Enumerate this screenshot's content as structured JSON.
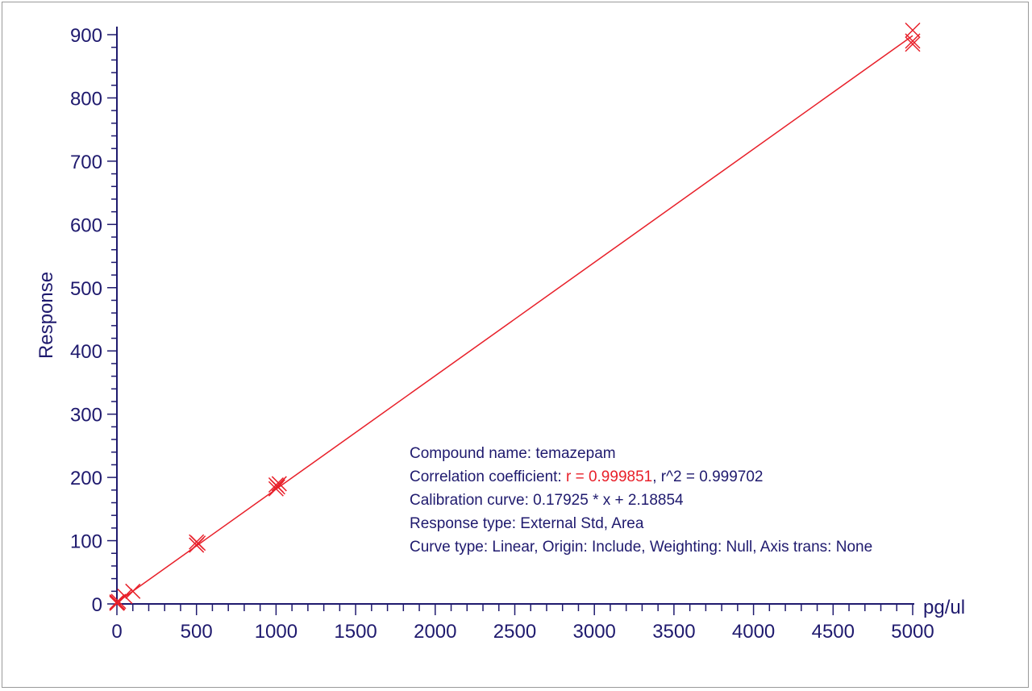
{
  "chart_data": {
    "type": "scatter",
    "title": "",
    "xlabel": "pg/ul",
    "ylabel": "Response",
    "xlim": [
      0,
      5000
    ],
    "ylim": [
      0,
      900
    ],
    "x_ticks": [
      "0",
      "500",
      "1000",
      "1500",
      "2000",
      "2500",
      "3000",
      "3500",
      "4000",
      "4500",
      "5000"
    ],
    "y_ticks": [
      "0",
      "100",
      "200",
      "300",
      "400",
      "500",
      "600",
      "700",
      "800",
      "900"
    ],
    "grid": false,
    "colors": {
      "axis": "#1f1a6e",
      "series": "#e8202a"
    },
    "series": [
      {
        "marker": "x",
        "points": [
          [
            0,
            1
          ],
          [
            0,
            3
          ],
          [
            5,
            2
          ],
          [
            10,
            4
          ],
          [
            50,
            12
          ],
          [
            100,
            20
          ],
          [
            500,
            93
          ],
          [
            500,
            98
          ],
          [
            510,
            96
          ],
          [
            1000,
            182
          ],
          [
            1000,
            188
          ],
          [
            1010,
            185
          ],
          [
            1020,
            190
          ],
          [
            5000,
            885
          ],
          [
            5000,
            890
          ],
          [
            5000,
            907
          ]
        ]
      }
    ],
    "fit_line": {
      "slope": 0.17925,
      "intercept": 2.18854,
      "x_range": [
        0,
        5000
      ]
    },
    "annotation": {
      "compound_name": "Compound name: temazepam",
      "correlation_prefix": "Correlation coefficient: ",
      "correlation_r": "r = 0.999851",
      "correlation_suffix": ", r^2 = 0.999702",
      "calibration_curve": "Calibration curve: 0.17925 * x + 2.18854",
      "response_type": "Response type: External Std, Area",
      "curve_type": "Curve type: Linear, Origin: Include, Weighting: Null, Axis trans: None"
    }
  }
}
